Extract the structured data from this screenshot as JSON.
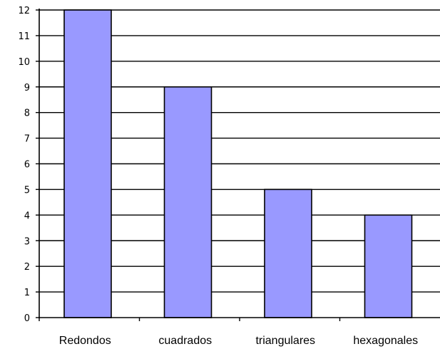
{
  "chart_data": {
    "type": "bar",
    "categories": [
      "Redondos",
      "cuadrados",
      "triangulares",
      "hexagonales"
    ],
    "values": [
      12,
      9,
      5,
      4
    ],
    "ylim": [
      0,
      12
    ],
    "yticks": [
      "0",
      "1",
      "2",
      "3",
      "4",
      "5",
      "6",
      "7",
      "8",
      "9",
      "10",
      "11",
      "12"
    ],
    "grid": true,
    "legend": "none",
    "colors": {
      "bar_fill": "#9999ff",
      "bar_stroke": "#000000",
      "grid": "#000000",
      "axis": "#000000"
    }
  }
}
